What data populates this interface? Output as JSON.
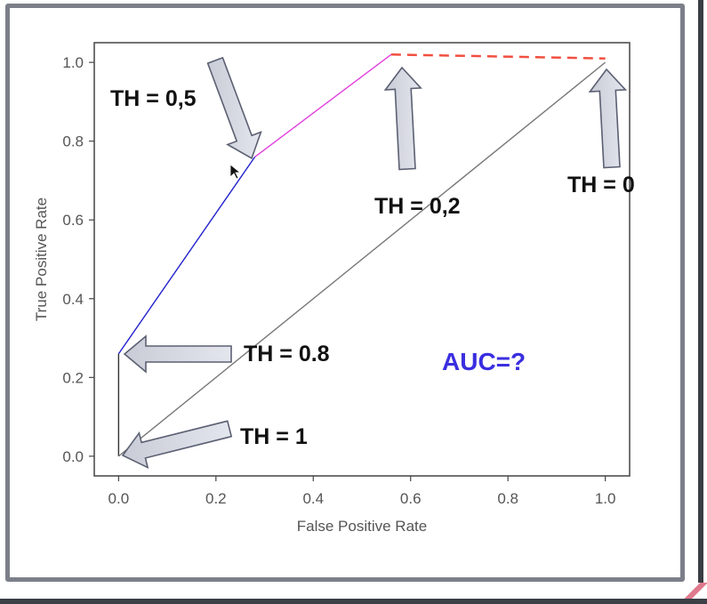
{
  "chart_data": {
    "type": "line",
    "title": "",
    "xlabel": "False Positive Rate",
    "ylabel": "True Positive Rate",
    "xlim": [
      -0.05,
      1.05
    ],
    "ylim": [
      -0.05,
      1.05
    ],
    "x_ticks": [
      "0.0",
      "0.2",
      "0.4",
      "0.6",
      "0.8",
      "1.0"
    ],
    "y_ticks": [
      "0.0",
      "0.2",
      "0.4",
      "0.6",
      "0.8",
      "1.0"
    ],
    "x_tick_values": [
      0,
      0.2,
      0.4,
      0.6,
      0.8,
      1.0
    ],
    "y_tick_values": [
      0,
      0.2,
      0.4,
      0.6,
      0.8,
      1.0
    ],
    "grid": false,
    "segments": [
      {
        "x": [
          0.0,
          0.0
        ],
        "y": [
          0.0,
          0.26
        ],
        "color": "#333333",
        "style": "solid"
      },
      {
        "x": [
          0.0,
          0.28
        ],
        "y": [
          0.26,
          0.76
        ],
        "color": "#2222cc",
        "style": "solid"
      },
      {
        "x": [
          0.28,
          0.56
        ],
        "y": [
          0.76,
          1.02
        ],
        "color": "#e040e0",
        "style": "solid"
      },
      {
        "x": [
          0.56,
          1.0
        ],
        "y": [
          1.02,
          1.01
        ],
        "color": "#f05040",
        "style": "dashed"
      },
      {
        "x": [
          0.0,
          1.0
        ],
        "y": [
          0.0,
          1.0
        ],
        "color": "#777777",
        "style": "solid"
      }
    ],
    "annotations": [
      {
        "text": "TH = 0,5",
        "target": [
          0.28,
          0.76
        ]
      },
      {
        "text": "TH = 0,2",
        "target": [
          0.56,
          1.02
        ]
      },
      {
        "text": "TH = 0",
        "target": [
          1.0,
          1.01
        ]
      },
      {
        "text": "TH = 0.8",
        "target": [
          0.0,
          0.26
        ]
      },
      {
        "text": "TH = 1",
        "target": [
          0.0,
          0.0
        ]
      }
    ],
    "auc_label": "AUC=?",
    "auc_color": "#3a2ee0"
  }
}
